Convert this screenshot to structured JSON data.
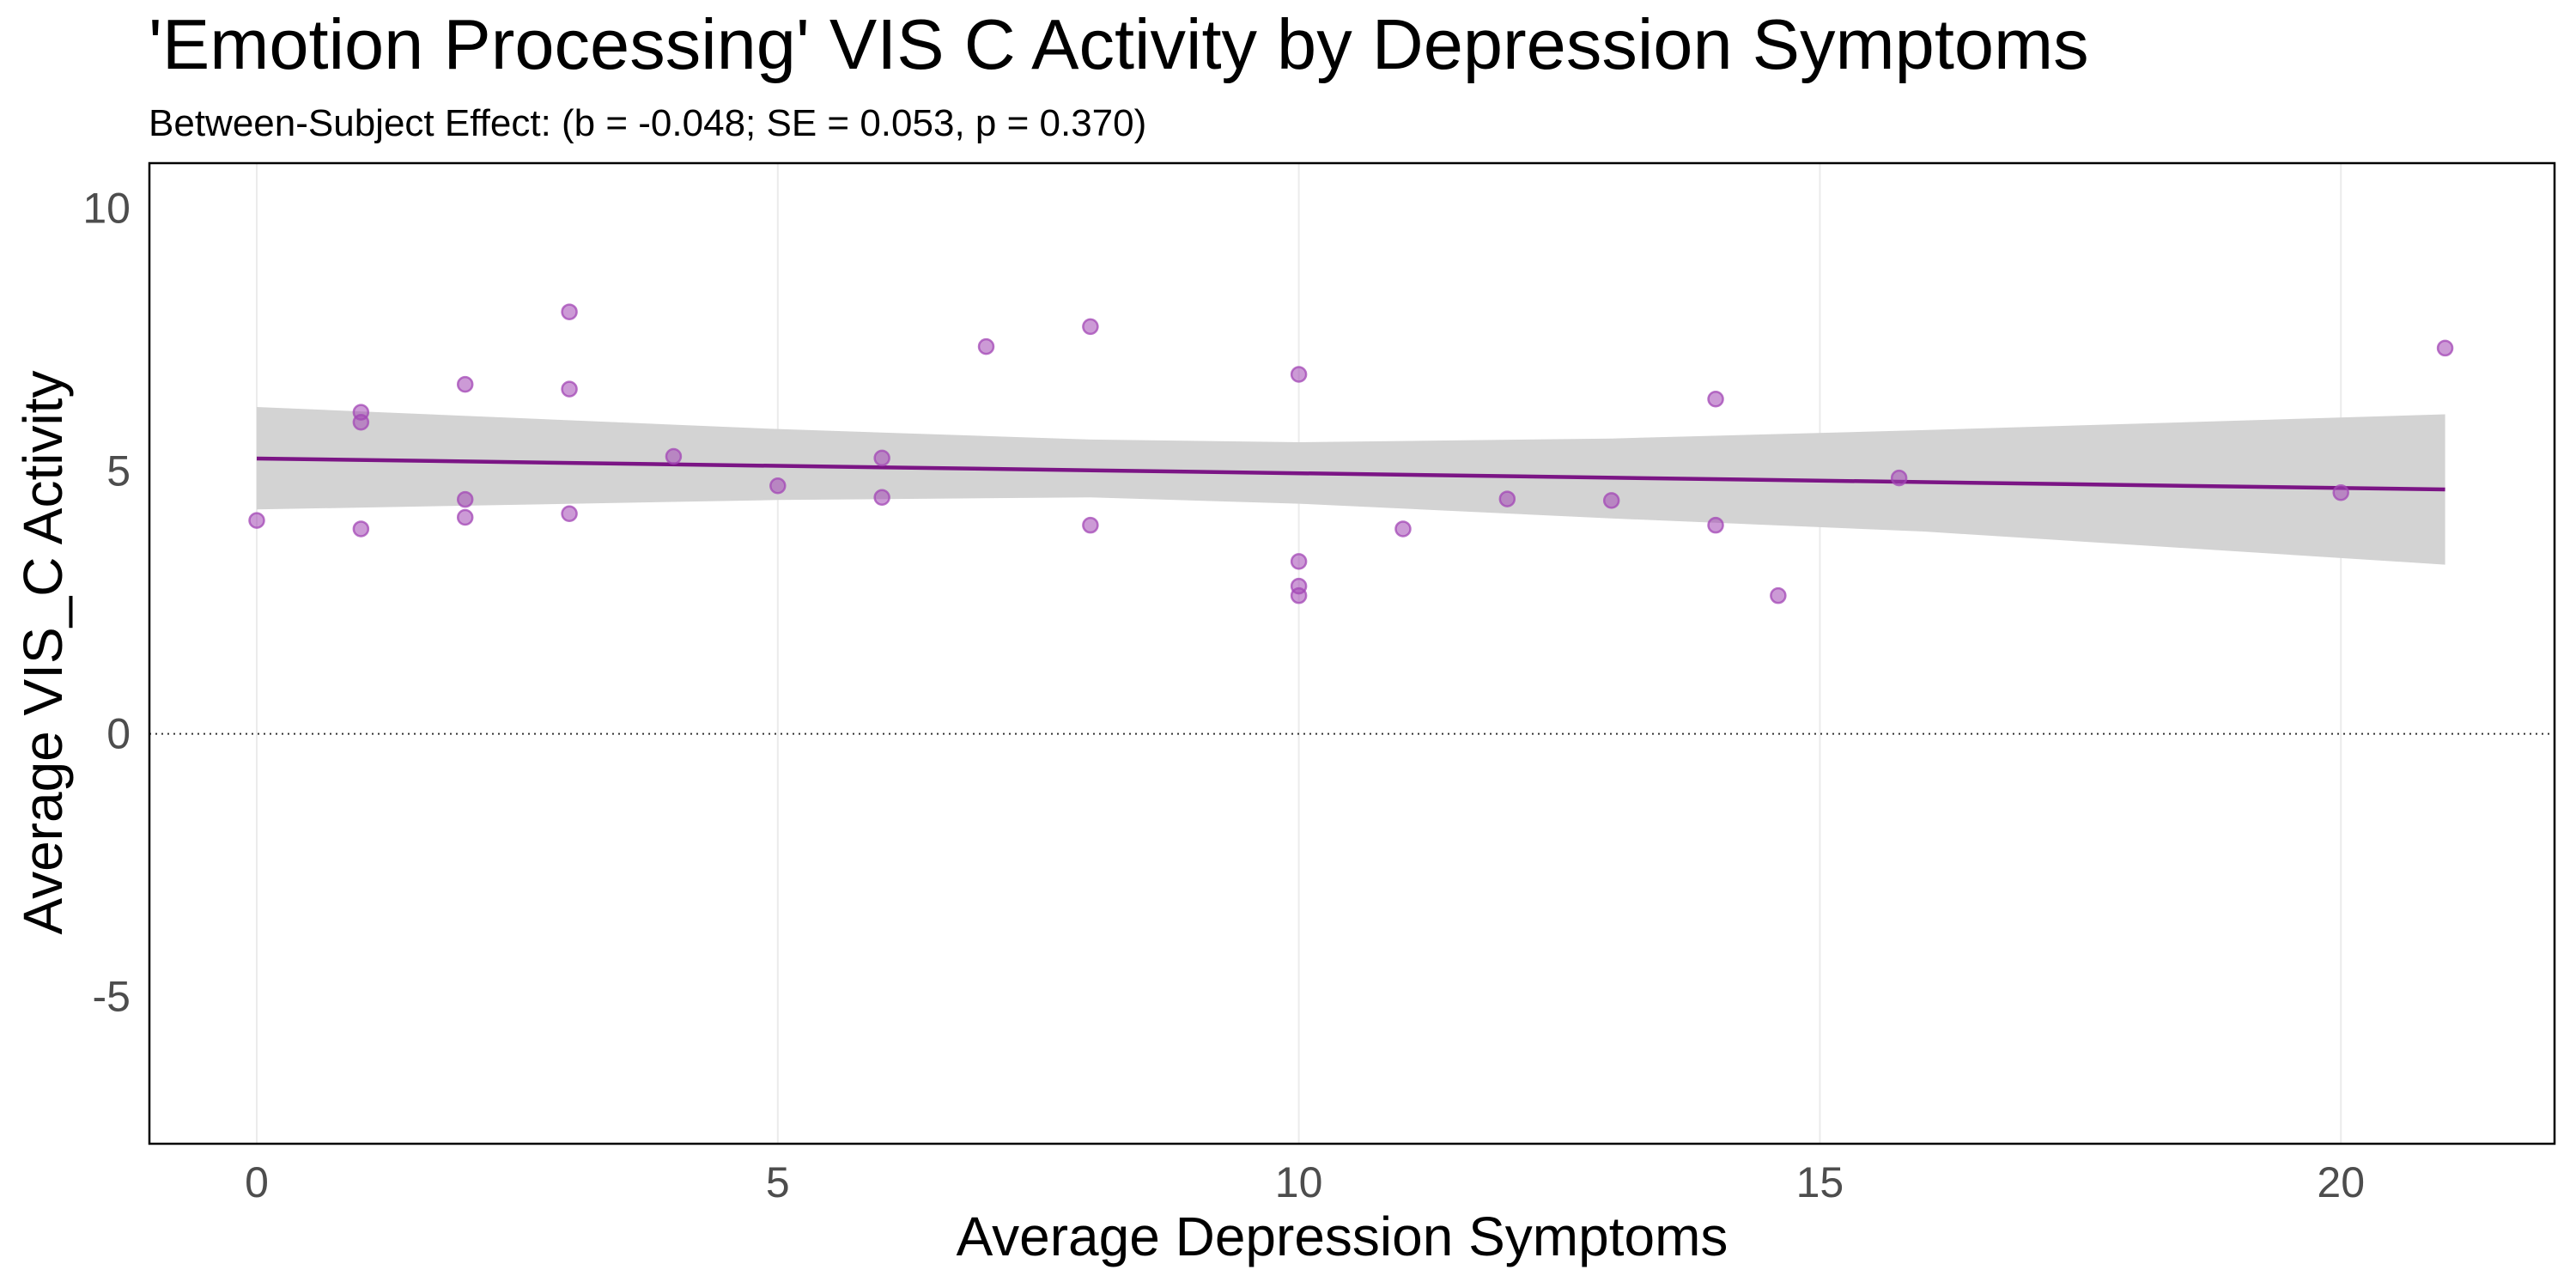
{
  "chart_data": {
    "type": "scatter",
    "title": "'Emotion Processing' VIS C Activity by Depression Symptoms",
    "subtitle": "Between-Subject Effect: (b = -0.048; SE = 0.053, p = 0.370)",
    "xlabel": "Average Depression Symptoms",
    "ylabel": "Average VIS_C Activity",
    "xlim": [
      -1.03,
      22.05
    ],
    "ylim": [
      -7.8,
      10.86
    ],
    "xticks": [
      0,
      5,
      10,
      15,
      20
    ],
    "xtick_labels": [
      "0",
      "5",
      "10",
      "15",
      "20"
    ],
    "yticks": [
      -5,
      0,
      5,
      10
    ],
    "ytick_labels": [
      "-5",
      "0",
      "5",
      "10"
    ],
    "grid": "vertical-major",
    "reference_line": {
      "y": 0,
      "style": "dotted"
    },
    "point_color": "#a347b5",
    "line_color": "#7b1585",
    "band_color": "#d3d3d3",
    "points": [
      {
        "x": 0,
        "y": 4.06
      },
      {
        "x": 1,
        "y": 6.12
      },
      {
        "x": 1,
        "y": 5.93
      },
      {
        "x": 1,
        "y": 3.9
      },
      {
        "x": 2,
        "y": 6.65
      },
      {
        "x": 2,
        "y": 4.46
      },
      {
        "x": 2,
        "y": 4.12
      },
      {
        "x": 3,
        "y": 8.03
      },
      {
        "x": 3,
        "y": 6.56
      },
      {
        "x": 3,
        "y": 4.19
      },
      {
        "x": 4,
        "y": 5.28
      },
      {
        "x": 5,
        "y": 4.72
      },
      {
        "x": 6,
        "y": 5.25
      },
      {
        "x": 6,
        "y": 4.5
      },
      {
        "x": 7,
        "y": 7.37
      },
      {
        "x": 8,
        "y": 7.75
      },
      {
        "x": 8,
        "y": 3.97
      },
      {
        "x": 10,
        "y": 6.84
      },
      {
        "x": 10,
        "y": 3.28
      },
      {
        "x": 10,
        "y": 2.81
      },
      {
        "x": 10,
        "y": 2.63
      },
      {
        "x": 11,
        "y": 3.9
      },
      {
        "x": 12,
        "y": 4.47
      },
      {
        "x": 13,
        "y": 4.44
      },
      {
        "x": 14,
        "y": 6.37
      },
      {
        "x": 14,
        "y": 3.97
      },
      {
        "x": 14.6,
        "y": 2.63
      },
      {
        "x": 15.76,
        "y": 4.87
      },
      {
        "x": 20,
        "y": 4.59
      },
      {
        "x": 21,
        "y": 7.34
      }
    ],
    "fit_line": {
      "x": [
        0,
        21
      ],
      "y": [
        5.24,
        4.65
      ]
    },
    "confidence_band": [
      {
        "x": 0,
        "lower": 4.27,
        "upper": 6.22
      },
      {
        "x": 5,
        "lower": 4.45,
        "upper": 5.8
      },
      {
        "x": 8,
        "lower": 4.5,
        "upper": 5.6
      },
      {
        "x": 10,
        "lower": 4.38,
        "upper": 5.55
      },
      {
        "x": 13,
        "lower": 4.1,
        "upper": 5.62
      },
      {
        "x": 16,
        "lower": 3.85,
        "upper": 5.78
      },
      {
        "x": 21,
        "lower": 3.22,
        "upper": 6.08
      }
    ]
  }
}
